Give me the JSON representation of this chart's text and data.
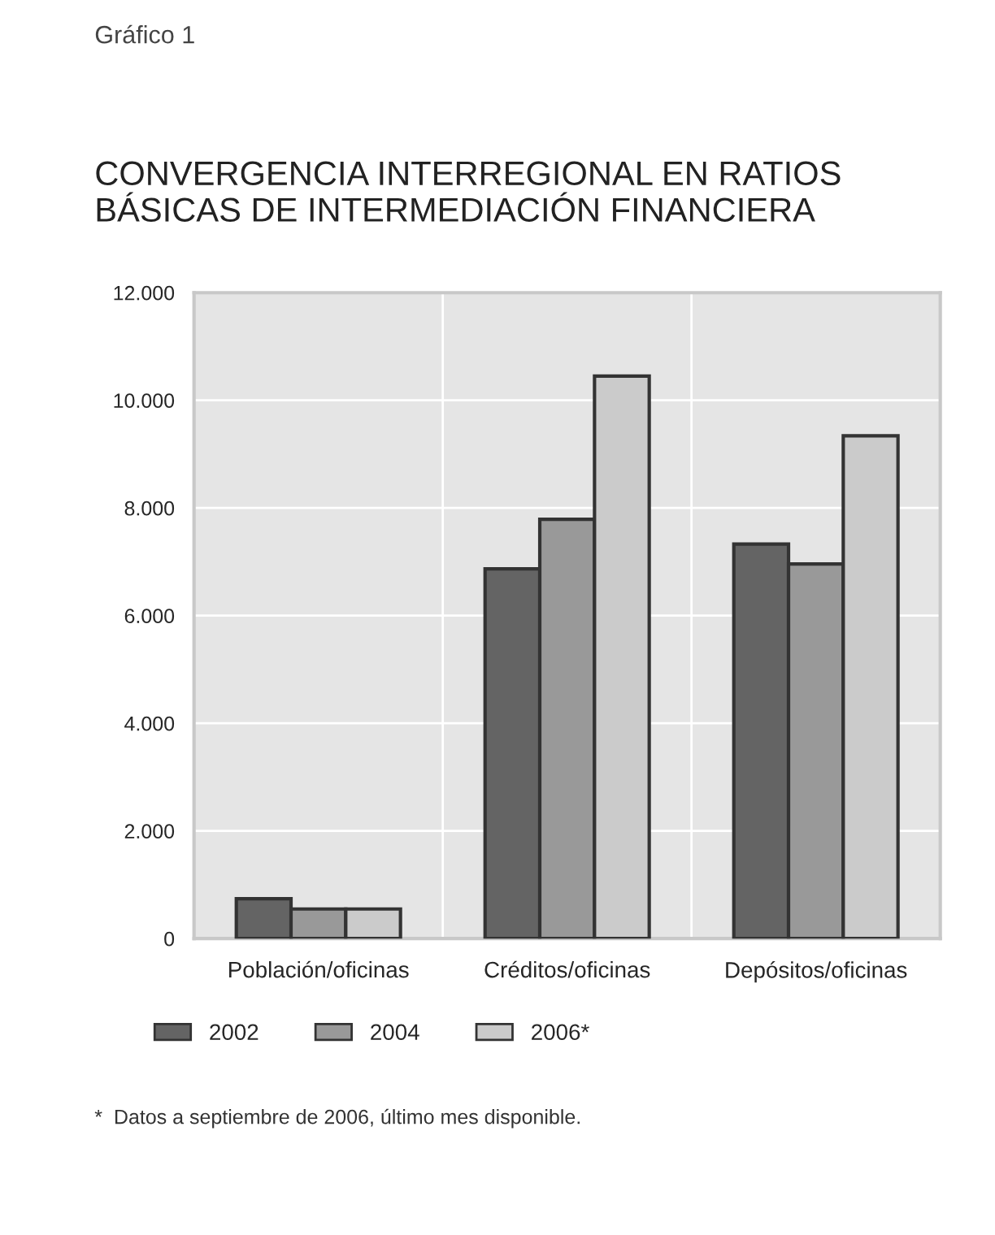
{
  "chart_data": {
    "type": "bar",
    "title": "CONVERGENCIA INTERREGIONAL EN RATIOS\nBÁSICAS DE INTERMEDIACIÓN FINANCIERA",
    "categories": [
      "Población/oficinas",
      "Créditos/oficinas",
      "Depósitos/oficinas"
    ],
    "series": [
      {
        "name": "2002",
        "color": "#646464",
        "values": [
          740,
          6870,
          7330
        ]
      },
      {
        "name": "2004",
        "color": "#999999",
        "values": [
          550,
          7790,
          6960
        ]
      },
      {
        "name": "2006*",
        "color": "#cbcbcb",
        "values": [
          550,
          10450,
          9340
        ]
      }
    ],
    "ylim": [
      0,
      12000
    ],
    "yticks": [
      {
        "value": 0,
        "label": "0"
      },
      {
        "value": 2000,
        "label": "2.000"
      },
      {
        "value": 4000,
        "label": "4.000"
      },
      {
        "value": 6000,
        "label": "6.000"
      },
      {
        "value": 8000,
        "label": "8.000"
      },
      {
        "value": 10000,
        "label": "10.000"
      },
      {
        "value": 12000,
        "label": "12.000"
      }
    ],
    "grid": true,
    "legend": "bottom left",
    "annotations": [
      "Gráfico 1",
      "*  Datos a septiembre de 2006, último mes disponible."
    ]
  }
}
